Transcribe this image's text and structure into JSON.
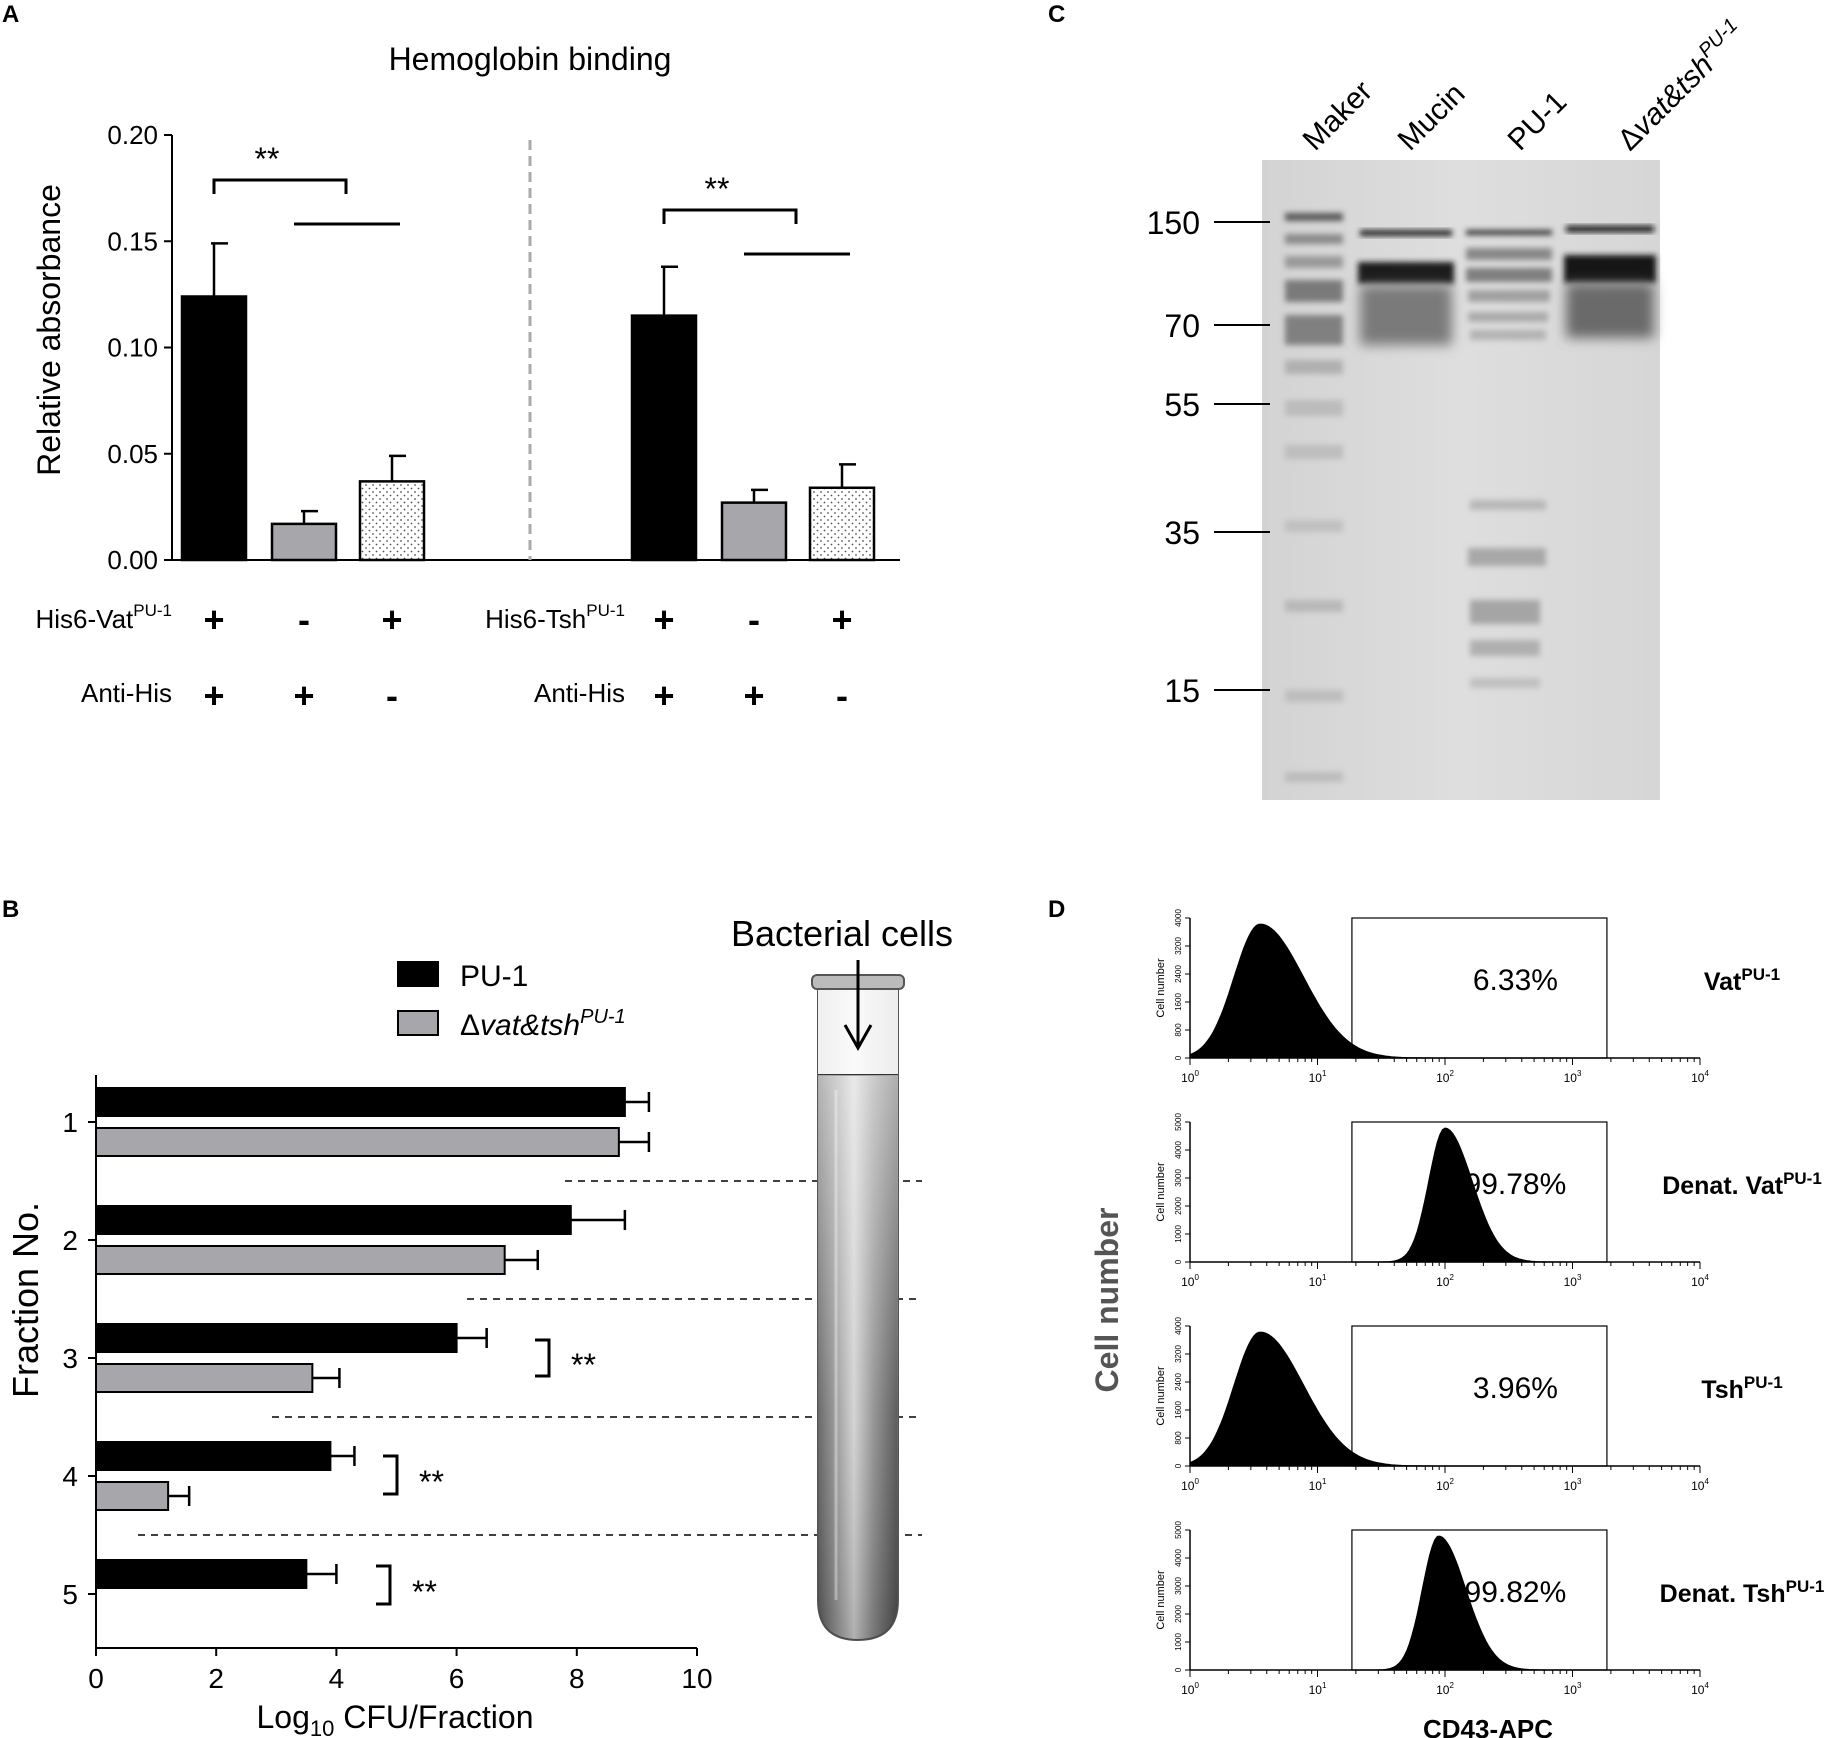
{
  "chart_data": [
    {
      "panel": "A",
      "type": "bar",
      "title": "Hemoglobin binding",
      "ylabel": "Relative absorbance",
      "ylim": [
        0,
        0.2
      ],
      "yticks": [
        "0.00",
        "0.05",
        "0.10",
        "0.15",
        "0.20"
      ],
      "significance": [
        "**",
        "**"
      ],
      "groups": [
        {
          "row1_label": "His6-Vat",
          "row1_sup": "PU-1",
          "row2_label": "Anti-His",
          "bars": [
            {
              "value": 0.124,
              "error": 0.025,
              "fill": "solid",
              "color": "#000000",
              "row1": "+",
              "row2": "+"
            },
            {
              "value": 0.017,
              "error": 0.006,
              "fill": "solid",
              "color": "#a6a6ab",
              "row1": "-",
              "row2": "+"
            },
            {
              "value": 0.037,
              "error": 0.012,
              "fill": "dotted",
              "color": "#ffffff",
              "row1": "+",
              "row2": "-"
            }
          ]
        },
        {
          "row1_label": "His6-Tsh",
          "row1_sup": "PU-1",
          "row2_label": "Anti-His",
          "bars": [
            {
              "value": 0.115,
              "error": 0.023,
              "fill": "solid",
              "color": "#000000",
              "row1": "+",
              "row2": "+"
            },
            {
              "value": 0.027,
              "error": 0.006,
              "fill": "solid",
              "color": "#a6a6ab",
              "row1": "-",
              "row2": "+"
            },
            {
              "value": 0.034,
              "error": 0.011,
              "fill": "dotted",
              "color": "#ffffff",
              "row1": "+",
              "row2": "-"
            }
          ]
        }
      ]
    },
    {
      "panel": "B",
      "type": "bar",
      "orientation": "horizontal",
      "xlabel_prefix": "Log",
      "xlabel_sub": "10",
      "xlabel_suffix": " CFU/Fraction",
      "ylabel": "Fraction No.",
      "xlim": [
        0,
        10
      ],
      "xticks": [
        "0",
        "2",
        "4",
        "6",
        "8",
        "10"
      ],
      "categories": [
        "1",
        "2",
        "3",
        "4",
        "5"
      ],
      "tube_label": "Bacterial cells",
      "significance": [
        {
          "fraction": "3",
          "label": "**"
        },
        {
          "fraction": "4",
          "label": "**"
        },
        {
          "fraction": "5",
          "label": "**"
        }
      ],
      "series": [
        {
          "name": "PU-1",
          "name_italic": "",
          "color": "#000000",
          "values": [
            8.8,
            7.9,
            6.0,
            3.9,
            3.5
          ],
          "errors": [
            0.4,
            0.9,
            0.5,
            0.4,
            0.5
          ]
        },
        {
          "name": "Δ",
          "name_italic": "vat&tsh",
          "name_sup": "PU-1",
          "color": "#a6a6ab",
          "values": [
            8.7,
            6.8,
            3.6,
            1.2,
            null
          ],
          "errors": [
            0.5,
            0.55,
            0.45,
            0.35,
            null
          ]
        }
      ]
    },
    {
      "panel": "C",
      "type": "other",
      "lanes": [
        "Maker",
        "Mucin",
        "PU-1"
      ],
      "lane4": {
        "prefix": "Δ",
        "italic": "vat&tsh",
        "sup": "PU-1"
      },
      "markers": [
        "150",
        "70",
        "55",
        "35",
        "15"
      ]
    },
    {
      "panel": "D",
      "type": "area",
      "ylabel": "Cell number",
      "xlabel": "CD43-APC",
      "mini_ylabel": "Cell number",
      "xticks_base": "10",
      "xticks_exp": [
        "0",
        "1",
        "2",
        "3",
        "4"
      ],
      "histograms": [
        {
          "name": "Vat",
          "prefix": "",
          "sup": "PU-1",
          "percent": "6.33%",
          "peak_log": 0.55,
          "width": 0.32,
          "yticks": [
            "0",
            "800",
            "1600",
            "2400",
            "3200",
            "4000"
          ]
        },
        {
          "name": "Vat",
          "prefix": "Denat. ",
          "sup": "PU-1",
          "percent": "99.78%",
          "peak_log": 2.0,
          "width": 0.2,
          "yticks": [
            "0",
            "1000",
            "2000",
            "3000",
            "4000",
            "5000"
          ]
        },
        {
          "name": "Tsh",
          "prefix": "",
          "sup": "PU-1",
          "percent": "3.96%",
          "peak_log": 0.55,
          "width": 0.32,
          "yticks": [
            "0",
            "800",
            "1600",
            "2400",
            "3200",
            "4000"
          ]
        },
        {
          "name": "Tsh",
          "prefix": "Denat. ",
          "sup": "PU-1",
          "percent": "99.82%",
          "peak_log": 1.95,
          "width": 0.2,
          "yticks": [
            "0",
            "1000",
            "2000",
            "3000",
            "4000",
            "5000"
          ]
        }
      ]
    }
  ],
  "panel_letters": {
    "a": "A",
    "b": "B",
    "c": "C",
    "d": "D"
  }
}
